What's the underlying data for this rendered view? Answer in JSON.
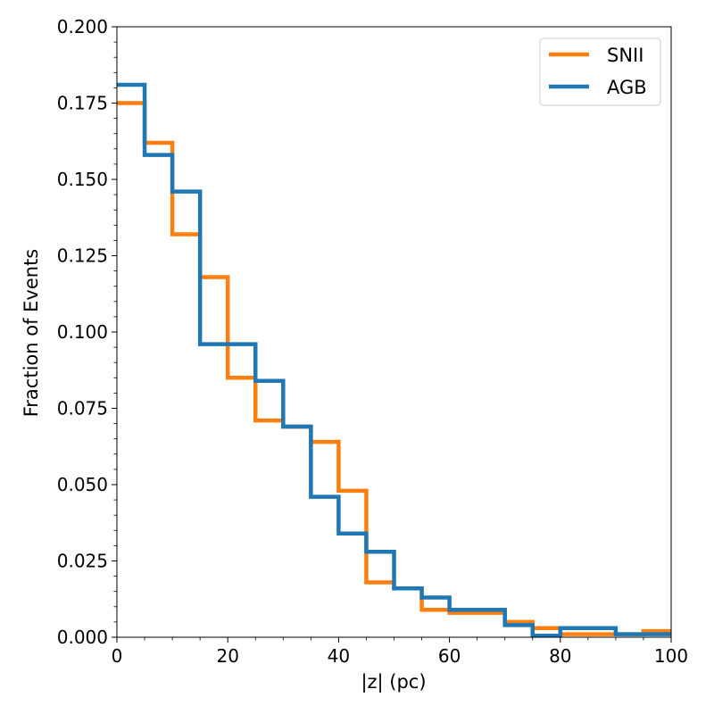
{
  "chart_data": {
    "type": "histogram-step",
    "title": "",
    "xlabel": "|z| (pc)",
    "ylabel": "Fraction of Events",
    "xlim": [
      0,
      100
    ],
    "ylim": [
      0,
      0.2
    ],
    "bin_width": 5,
    "bin_edges": [
      0,
      5,
      10,
      15,
      20,
      25,
      30,
      35,
      40,
      45,
      50,
      55,
      60,
      65,
      70,
      75,
      80,
      85,
      90,
      95,
      100
    ],
    "x_ticks": [
      0,
      20,
      40,
      60,
      80,
      100
    ],
    "x_tick_labels": [
      "0",
      "20",
      "40",
      "60",
      "80",
      "100"
    ],
    "y_ticks": [
      0,
      0.025,
      0.05,
      0.075,
      0.1,
      0.125,
      0.15,
      0.175,
      0.2
    ],
    "y_tick_labels": [
      "0.000",
      "0.025",
      "0.050",
      "0.075",
      "0.100",
      "0.125",
      "0.150",
      "0.175",
      "0.200"
    ],
    "legend_position": "top-right",
    "series": [
      {
        "name": "SNII",
        "color": "#ff7f0e",
        "values": [
          0.175,
          0.162,
          0.132,
          0.118,
          0.085,
          0.071,
          0.069,
          0.064,
          0.048,
          0.018,
          0.016,
          0.009,
          0.008,
          0.008,
          0.005,
          0.003,
          0.001,
          0.001,
          0.001,
          0.002
        ]
      },
      {
        "name": "AGB",
        "color": "#1f77b4",
        "values": [
          0.181,
          0.158,
          0.146,
          0.096,
          0.096,
          0.084,
          0.069,
          0.046,
          0.034,
          0.028,
          0.016,
          0.013,
          0.009,
          0.009,
          0.004,
          0.0005,
          0.003,
          0.003,
          0.001,
          0.001
        ]
      }
    ]
  }
}
